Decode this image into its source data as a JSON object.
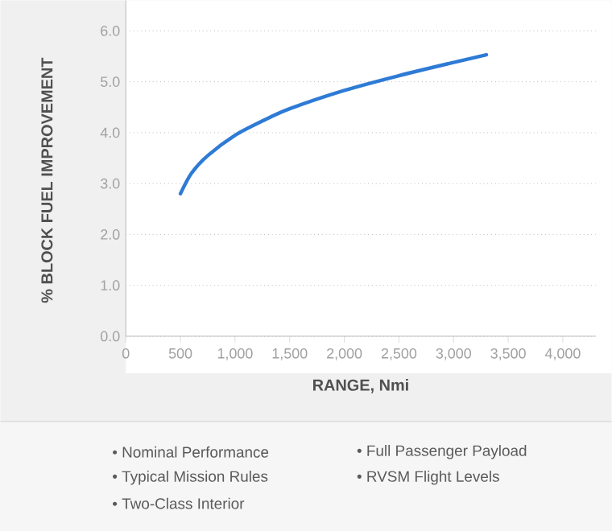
{
  "chart_data": {
    "type": "line",
    "xlabel": "RANGE, Nmi",
    "ylabel": "% BLOCK FUEL IMPROVEMENT",
    "x": [
      500,
      600,
      750,
      1000,
      1250,
      1500,
      2000,
      2500,
      3000,
      3300
    ],
    "series": [
      {
        "color": "#2e7bd6",
        "values": [
          2.8,
          3.2,
          3.55,
          3.95,
          4.23,
          4.47,
          4.83,
          5.12,
          5.38,
          5.53
        ]
      }
    ],
    "xlim": [
      0,
      4300
    ],
    "ylim": [
      0,
      6.6
    ],
    "xticks": [
      0,
      500,
      {
        "value": 1000,
        "label": "1,000"
      },
      {
        "value": 1500,
        "label": "1,500"
      },
      {
        "value": 2000,
        "label": "2,000"
      },
      {
        "value": 2500,
        "label": "2,500"
      },
      {
        "value": 3000,
        "label": "3,000"
      },
      {
        "value": 3500,
        "label": "3,500"
      },
      {
        "value": 4000,
        "label": "4,000"
      }
    ],
    "yticks": [
      {
        "value": 0,
        "label": "0.0"
      },
      {
        "value": 1,
        "label": "1.0"
      },
      {
        "value": 2,
        "label": "2.0"
      },
      {
        "value": 3,
        "label": "3.0"
      },
      {
        "value": 4,
        "label": "4.0"
      },
      {
        "value": 5,
        "label": "5.0"
      },
      {
        "value": 6,
        "label": "6.0"
      }
    ],
    "grid": "y",
    "marker": "none",
    "line_style": "solid",
    "annotations": [
      "• Nominal Performance",
      "• Full Passenger Payload",
      "• Typical Mission Rules",
      "• RVSM Flight Levels",
      "• Two-Class Interior"
    ]
  }
}
